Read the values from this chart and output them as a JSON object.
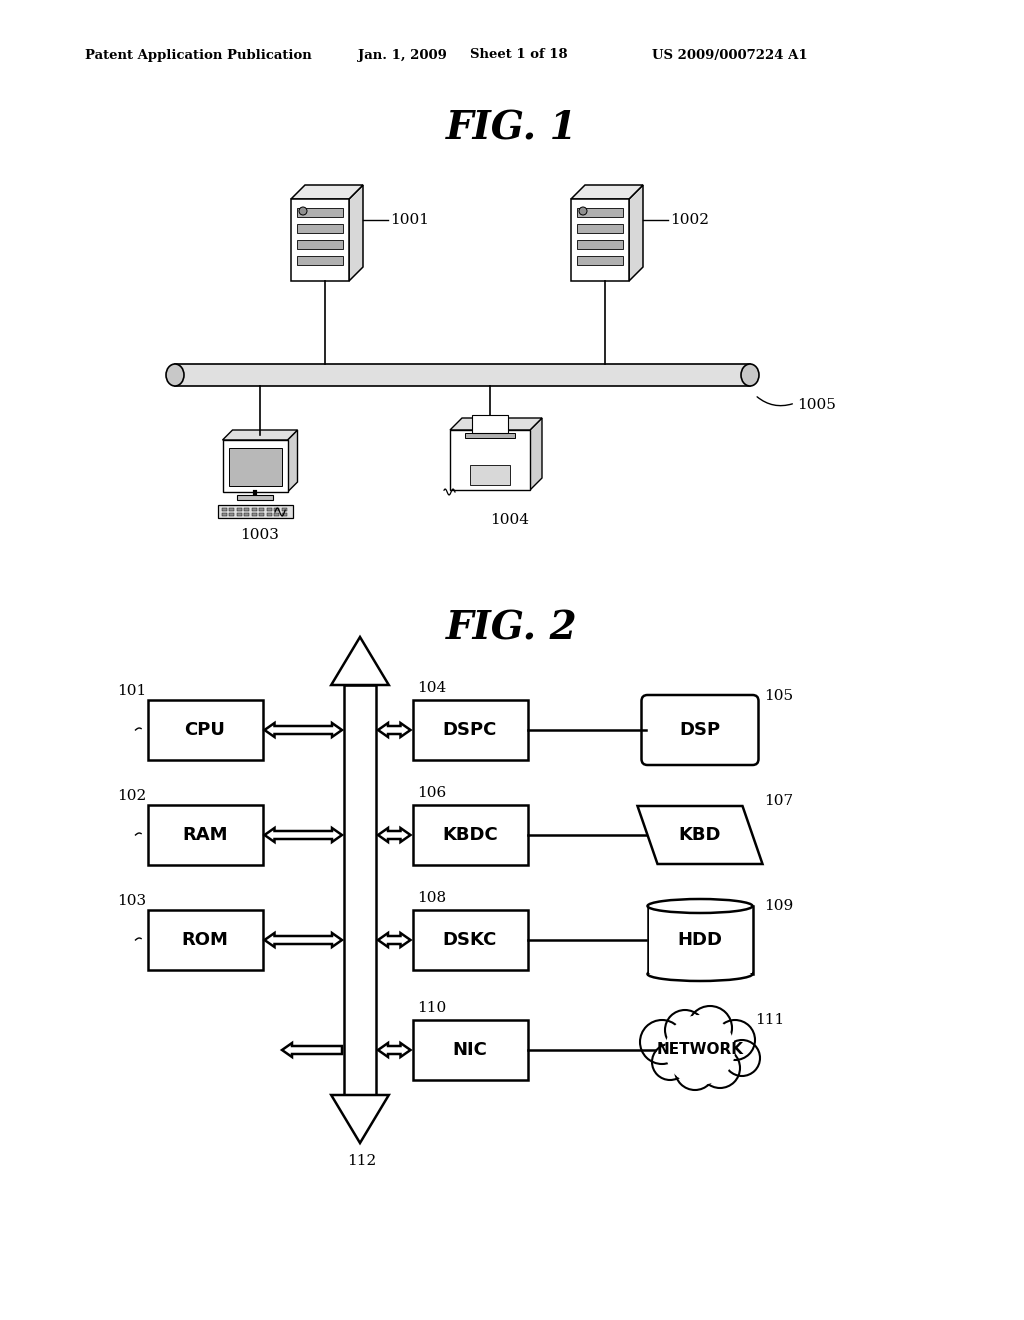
{
  "bg_color": "#ffffff",
  "header_text": "Patent Application Publication",
  "header_date": "Jan. 1, 2009",
  "header_sheet": "Sheet 1 of 18",
  "header_patent": "US 2009/0007224 A1",
  "fig1_title": "FIG. 1",
  "fig2_title": "FIG. 2",
  "fig2_boxes_left": [
    {
      "label": "CPU",
      "ref": "101",
      "row": 0
    },
    {
      "label": "RAM",
      "ref": "102",
      "row": 1
    },
    {
      "label": "ROM",
      "ref": "103",
      "row": 2
    }
  ],
  "fig2_boxes_mid": [
    {
      "label": "DSPC",
      "ref": "104",
      "row": 0
    },
    {
      "label": "KBDC",
      "ref": "106",
      "row": 1
    },
    {
      "label": "DSKC",
      "ref": "108",
      "row": 2
    },
    {
      "label": "NIC",
      "ref": "110",
      "row": 3
    }
  ],
  "fig2_boxes_right": [
    {
      "label": "DSP",
      "ref": "105",
      "row": 0,
      "shape": "rounded"
    },
    {
      "label": "KBD",
      "ref": "107",
      "row": 1,
      "shape": "parallelogram"
    },
    {
      "label": "HDD",
      "ref": "109",
      "row": 2,
      "shape": "cylinder"
    },
    {
      "label": "NETWORK",
      "ref": "111",
      "row": 3,
      "shape": "cloud"
    }
  ],
  "fig2_bus_ref": "112"
}
